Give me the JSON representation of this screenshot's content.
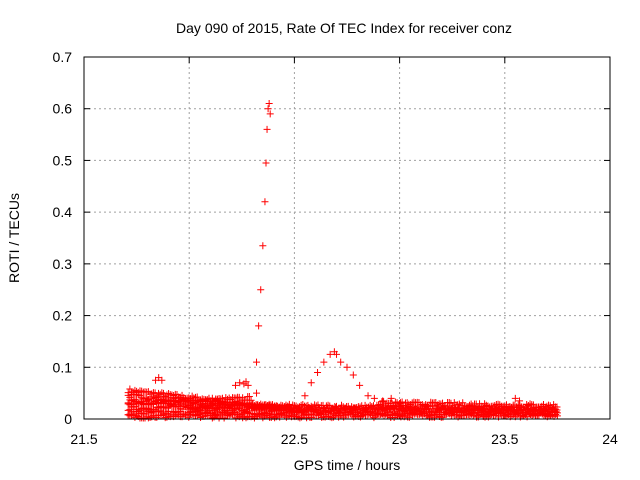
{
  "chart_data": {
    "type": "scatter",
    "title": "Day 090 of 2015, Rate Of TEC Index for receiver conz",
    "xlabel": "GPS time / hours",
    "ylabel": "ROTI / TECUs",
    "xlim": [
      21.5,
      24
    ],
    "ylim": [
      0,
      0.7
    ],
    "xticks": [
      "21.5",
      "22",
      "22.5",
      "23",
      "23.5",
      "24"
    ],
    "yticks": [
      "0",
      "0.1",
      "0.2",
      "0.3",
      "0.4",
      "0.5",
      "0.6",
      "0.7"
    ],
    "grid": true,
    "marker": "plus",
    "color": "#ff0000",
    "series": [
      {
        "x": [
          22.32,
          22.32,
          22.33,
          22.34,
          22.35,
          22.36,
          22.365,
          22.37,
          22.375,
          22.38,
          22.385,
          21.84,
          21.855,
          21.87,
          22.22,
          22.24,
          22.26,
          22.27,
          22.28,
          22.55,
          22.58,
          22.61,
          22.64,
          22.67,
          22.69,
          22.7,
          22.72,
          22.75,
          22.78,
          22.81,
          22.85,
          22.88,
          22.92,
          22.96,
          23.0,
          23.55,
          23.57
        ],
        "y": [
          0.05,
          0.11,
          0.18,
          0.25,
          0.335,
          0.42,
          0.495,
          0.56,
          0.6,
          0.61,
          0.59,
          0.075,
          0.08,
          0.075,
          0.065,
          0.07,
          0.068,
          0.072,
          0.065,
          0.045,
          0.07,
          0.09,
          0.11,
          0.125,
          0.13,
          0.125,
          0.11,
          0.1,
          0.085,
          0.065,
          0.045,
          0.04,
          0.035,
          0.04,
          0.03,
          0.04,
          0.035
        ]
      }
    ],
    "tracks": [
      {
        "x_start": 21.71,
        "x_end": 22.45,
        "y_start": 0.055,
        "y_end": 0.02,
        "step": 0.008
      },
      {
        "x_start": 21.71,
        "x_end": 22.6,
        "y_start": 0.045,
        "y_end": 0.015,
        "step": 0.008
      },
      {
        "x_start": 21.71,
        "x_end": 22.5,
        "y_start": 0.035,
        "y_end": 0.02,
        "step": 0.008
      },
      {
        "x_start": 21.71,
        "x_end": 22.3,
        "y_start": 0.03,
        "y_end": 0.04,
        "step": 0.008
      },
      {
        "x_start": 21.71,
        "x_end": 22.2,
        "y_start": 0.02,
        "y_end": 0.025,
        "step": 0.008
      },
      {
        "x_start": 21.71,
        "x_end": 23.75,
        "y_start": 0.012,
        "y_end": 0.01,
        "step": 0.008
      },
      {
        "x_start": 21.71,
        "x_end": 23.75,
        "y_start": 0.005,
        "y_end": 0.008,
        "step": 0.008
      },
      {
        "x_start": 22.0,
        "x_end": 23.75,
        "y_start": 0.02,
        "y_end": 0.015,
        "step": 0.008
      },
      {
        "x_start": 22.3,
        "x_end": 23.75,
        "y_start": 0.025,
        "y_end": 0.02,
        "step": 0.008
      },
      {
        "x_start": 22.9,
        "x_end": 23.75,
        "y_start": 0.03,
        "y_end": 0.025,
        "step": 0.008
      }
    ]
  }
}
